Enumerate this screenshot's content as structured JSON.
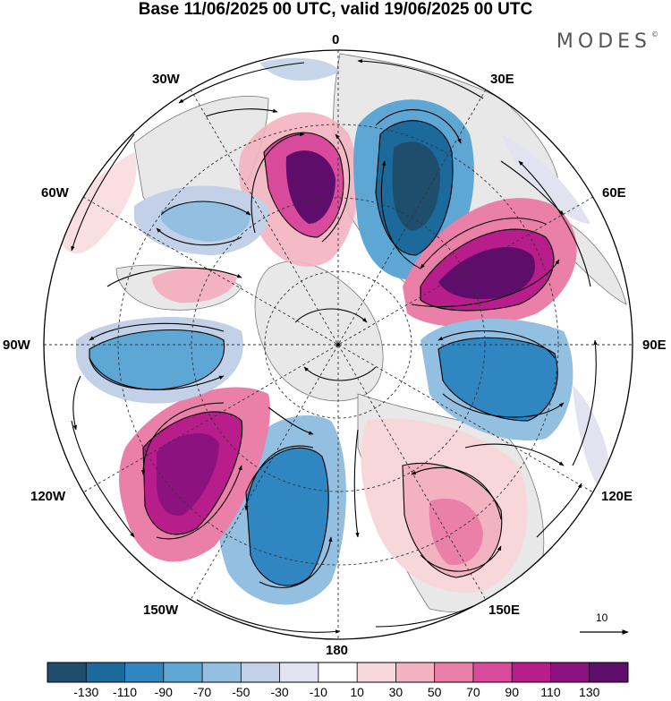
{
  "title": "Base 11/06/2025 00 UTC, valid 19/06/2025 00 UTC",
  "brand": "MODES",
  "brand_mark": "©",
  "grid_labels": {
    "n0": "0",
    "e30": "30E",
    "e60": "60E",
    "e90": "90E",
    "e120": "120E",
    "e150": "150E",
    "s180": "180",
    "w150": "150W",
    "w120": "120W",
    "w90": "90W",
    "w60": "60W",
    "w30": "30W"
  },
  "wind_reference": {
    "value": "10",
    "unit": "arrow"
  },
  "colorbar": {
    "ticks": [
      "-130",
      "-110",
      "-90",
      "-70",
      "-50",
      "-30",
      "-10",
      "10",
      "30",
      "50",
      "70",
      "90",
      "110",
      "130"
    ],
    "colors": [
      "#1f4e6d",
      "#1c6a9c",
      "#2f86c0",
      "#5ea6d4",
      "#93bfe0",
      "#c2d1e7",
      "#e2e2f0",
      "#ffffff",
      "#f8d7db",
      "#f3b2c0",
      "#ea7fa8",
      "#da4a9c",
      "#b81d8c",
      "#8c127f",
      "#5e0e6a"
    ]
  },
  "anomaly_lobes": [
    {
      "id": "pos-north",
      "sign": "positive",
      "peak": 130
    },
    {
      "id": "neg-north-ne",
      "sign": "negative",
      "peak": -130
    },
    {
      "id": "pos-northeast",
      "sign": "positive",
      "peak": 130
    },
    {
      "id": "neg-east",
      "sign": "negative",
      "peak": -90
    },
    {
      "id": "pos-southeast",
      "sign": "positive",
      "peak": 70
    },
    {
      "id": "neg-south",
      "sign": "negative",
      "peak": -90
    },
    {
      "id": "pos-southwest",
      "sign": "positive",
      "peak": 110
    },
    {
      "id": "neg-west",
      "sign": "negative",
      "peak": -70
    },
    {
      "id": "neg-northwest",
      "sign": "negative",
      "peak": -70
    },
    {
      "id": "pos-greenland",
      "sign": "positive",
      "peak": 30
    }
  ]
}
